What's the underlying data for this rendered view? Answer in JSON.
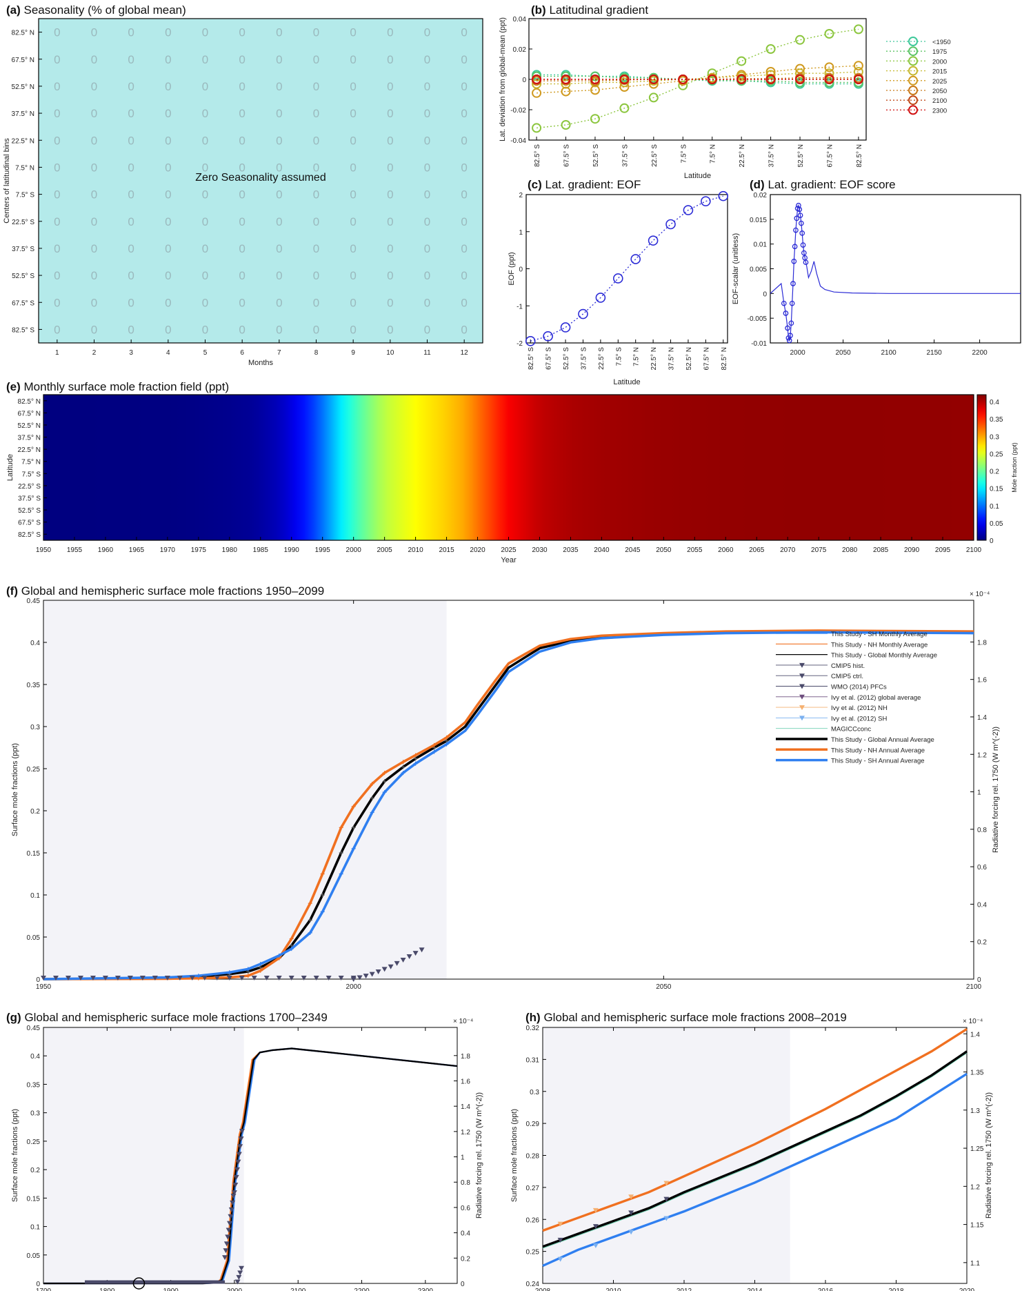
{
  "colors": {
    "nh": "#f07020",
    "sh": "#2f7ff0",
    "global": "#000000",
    "hist_shade": "#f3f3f8",
    "seasonality_bg": "#b4eaea",
    "eof": "#2b2bd6",
    "wmo": "#4a4a6a",
    "cmip5": "#4a4a6a",
    "magicc": "#6fcfb0"
  },
  "chart_data": [
    {
      "id": "a",
      "type": "heatmap",
      "title": "Seasonality (% of global mean)",
      "title_letter": "(a)",
      "ylabel": "Centers of latitudinal bins",
      "xlabel": "Months",
      "y_tick_labels": [
        "82.5° N",
        "67.5° N",
        "52.5° N",
        "37.5° N",
        "22.5° N",
        "7.5° N",
        "7.5° S",
        "22.5° S",
        "37.5° S",
        "52.5° S",
        "67.5° S",
        "82.5° S"
      ],
      "x_tick_labels": [
        "1",
        "2",
        "3",
        "4",
        "5",
        "6",
        "7",
        "8",
        "9",
        "10",
        "11",
        "12"
      ],
      "cell_value": "0",
      "annotation": "Zero Seasonality assumed"
    },
    {
      "id": "b",
      "type": "line",
      "title": "Latitudinal gradient",
      "title_letter": "(b)",
      "ylabel": "Lat. deviation from global-mean (ppt)",
      "xlabel": "Latitude",
      "x_tick_labels": [
        "82.5° S",
        "67.5° S",
        "52.5° S",
        "37.5° S",
        "22.5° S",
        "7.5° S",
        "7.5° N",
        "22.5° N",
        "37.5° N",
        "52.5° N",
        "67.5° N",
        "82.5° N"
      ],
      "x": [
        -82.5,
        -67.5,
        -52.5,
        -37.5,
        -22.5,
        -7.5,
        7.5,
        22.5,
        37.5,
        52.5,
        67.5,
        82.5
      ],
      "ylim": [
        -0.04,
        0.04
      ],
      "y_ticks": [
        -0.04,
        -0.02,
        0,
        0.02,
        0.04
      ],
      "y_tick_labels": [
        "-0.04",
        "-0.02",
        "0",
        "0.02",
        "0.04"
      ],
      "series": [
        {
          "name": "<1950",
          "color": "#3ec89a",
          "values": [
            0.003,
            0.003,
            0.002,
            0.002,
            0.001,
            0.0,
            -0.001,
            -0.001,
            -0.002,
            -0.003,
            -0.003,
            -0.003
          ]
        },
        {
          "name": "1975",
          "color": "#5cc466",
          "values": [
            0.002,
            0.002,
            0.002,
            0.001,
            0.001,
            0.0,
            -0.0005,
            -0.001,
            -0.001,
            -0.002,
            -0.002,
            -0.002
          ]
        },
        {
          "name": "2000",
          "color": "#8cc63f",
          "values": [
            -0.032,
            -0.03,
            -0.026,
            -0.019,
            -0.012,
            -0.004,
            0.004,
            0.012,
            0.02,
            0.026,
            0.03,
            0.033
          ]
        },
        {
          "name": "2015",
          "color": "#c6b830",
          "values": [
            -0.003,
            -0.003,
            -0.002,
            -0.002,
            -0.001,
            0.0,
            0.001,
            0.002,
            0.003,
            0.004,
            0.004,
            0.005
          ]
        },
        {
          "name": "2025",
          "color": "#d09a20",
          "values": [
            -0.009,
            -0.008,
            -0.007,
            -0.005,
            -0.003,
            -0.001,
            0.001,
            0.003,
            0.005,
            0.007,
            0.008,
            0.009
          ]
        },
        {
          "name": "2050",
          "color": "#c87818",
          "values": [
            -0.001,
            -0.001,
            -0.001,
            -0.0005,
            0.0,
            0.0,
            0.0,
            0.0005,
            0.0005,
            0.001,
            0.001,
            0.001
          ]
        },
        {
          "name": "2100",
          "color": "#c04818",
          "values": [
            0.0,
            0.0,
            0.0,
            0.0,
            0.0,
            0.0,
            0.0,
            0.0,
            0.0,
            0.0,
            0.0,
            0.0
          ]
        },
        {
          "name": "2300",
          "color": "#d01010",
          "values": [
            0.0,
            0.0,
            0.0,
            0.0,
            0.0,
            0.0,
            0.0,
            0.0,
            0.0,
            0.0,
            0.0,
            0.0
          ]
        }
      ]
    },
    {
      "id": "c",
      "type": "scatter",
      "title": "Lat. gradient: EOF",
      "title_letter": "(c)",
      "ylabel": "EOF (ppt)",
      "xlabel": "Latitude",
      "x_tick_labels": [
        "82.5° S",
        "67.5° S",
        "52.5° S",
        "37.5° S",
        "22.5° S",
        "7.5° S",
        "7.5° N",
        "22.5° N",
        "37.5° N",
        "52.5° N",
        "67.5° N",
        "82.5° N"
      ],
      "x": [
        -82.5,
        -67.5,
        -52.5,
        -37.5,
        -22.5,
        -7.5,
        7.5,
        22.5,
        37.5,
        52.5,
        67.5,
        82.5
      ],
      "values": [
        -1.95,
        -1.82,
        -1.58,
        -1.22,
        -0.78,
        -0.26,
        0.26,
        0.76,
        1.2,
        1.58,
        1.82,
        1.96
      ],
      "ylim": [
        -2,
        2
      ],
      "y_ticks": [
        -2,
        -1,
        0,
        1,
        2
      ],
      "y_tick_labels": [
        "-2",
        "-1",
        "0",
        "1",
        "2"
      ]
    },
    {
      "id": "d",
      "type": "line",
      "title": "Lat. gradient: EOF score",
      "title_letter": "(d)",
      "ylabel": "EOF-scalar (unitless)",
      "xlabel": "",
      "xlim": [
        1970,
        2245
      ],
      "ylim": [
        -0.01,
        0.02
      ],
      "x_ticks": [
        2000,
        2050,
        2100,
        2150,
        2200
      ],
      "x_tick_labels": [
        "2000",
        "2050",
        "2100",
        "2150",
        "2200"
      ],
      "y_ticks": [
        -0.01,
        -0.005,
        0,
        0.005,
        0.01,
        0.015,
        0.02
      ],
      "y_tick_labels": [
        "-0.01",
        "-0.005",
        "0",
        "0.005",
        "0.01",
        "0.015",
        "0.02"
      ],
      "x": [
        1970,
        1982,
        1985,
        1987,
        1989,
        1990,
        1991,
        1992,
        1993,
        1994,
        1995,
        1996,
        1997,
        1998,
        1999,
        2000,
        2001,
        2002,
        2003,
        2004,
        2005,
        2006,
        2007,
        2008,
        2009,
        2010,
        2012,
        2015,
        2018,
        2021,
        2025,
        2030,
        2040,
        2060,
        2100,
        2150,
        2245
      ],
      "values": [
        0.0,
        0.002,
        -0.002,
        -0.004,
        -0.007,
        -0.009,
        -0.0095,
        -0.0085,
        -0.006,
        -0.002,
        0.002,
        0.0065,
        0.0095,
        0.0128,
        0.0152,
        0.0172,
        0.0178,
        0.017,
        0.0158,
        0.0142,
        0.0122,
        0.0098,
        0.0082,
        0.0072,
        0.0063,
        0.0055,
        0.0032,
        0.0045,
        0.0065,
        0.004,
        0.0015,
        0.0008,
        0.0003,
        0.0001,
        0.0,
        0.0,
        0.0
      ],
      "marker_x_max": 2009
    },
    {
      "id": "e",
      "type": "heatmap",
      "title": "Monthly surface mole fraction field (ppt)",
      "title_letter": "(e)",
      "ylabel": "Latitude",
      "xlabel": "Year",
      "colorbar_label": "Mole fraction (ppt)",
      "y_tick_labels": [
        "82.5° N",
        "67.5° N",
        "52.5° N",
        "37.5° N",
        "22.5° N",
        "7.5° N",
        "7.5° S",
        "22.5° S",
        "37.5° S",
        "52.5° S",
        "67.5° S",
        "82.5° S"
      ],
      "xlim": [
        1950,
        2100
      ],
      "x_ticks": [
        1950,
        1955,
        1960,
        1965,
        1970,
        1975,
        1980,
        1985,
        1990,
        1995,
        2000,
        2005,
        2010,
        2015,
        2020,
        2025,
        2030,
        2035,
        2040,
        2045,
        2050,
        2055,
        2060,
        2065,
        2070,
        2075,
        2080,
        2085,
        2090,
        2095,
        2100
      ],
      "x_tick_labels": [
        "1950",
        "1955",
        "1960",
        "1965",
        "1970",
        "1975",
        "1980",
        "1985",
        "1990",
        "1995",
        "2000",
        "2005",
        "2010",
        "2015",
        "2020",
        "2025",
        "2030",
        "2035",
        "2040",
        "2045",
        "2050",
        "2055",
        "2060",
        "2065",
        "2070",
        "2075",
        "2080",
        "2085",
        "2090",
        "2095",
        "2100"
      ],
      "clim": [
        0,
        0.42
      ],
      "colorbar_ticks": [
        0,
        0.05,
        0.1,
        0.15,
        0.2,
        0.25,
        0.3,
        0.35,
        0.4
      ],
      "colorbar_tick_labels": [
        "0",
        "0.05",
        "0.1",
        "0.15",
        "0.2",
        "0.25",
        "0.3",
        "0.35",
        "0.4"
      ]
    },
    {
      "id": "f",
      "type": "line",
      "title": "Global and hemispheric surface mole fractions 1950–2099",
      "title_letter": "(f)",
      "ylabel": "Surface mole fractions (ppt)",
      "ylabel_right": "Radiative forcing rel. 1750 (W m^(-2))",
      "right_exponent": "× 10⁻⁴",
      "xlim": [
        1950,
        2100
      ],
      "ylim": [
        0,
        0.45
      ],
      "x_ticks": [
        1950,
        2000,
        2050,
        2100
      ],
      "x_tick_labels": [
        "1950",
        "2000",
        "2050",
        "2100"
      ],
      "y_ticks": [
        0,
        0.05,
        0.1,
        0.15,
        0.2,
        0.25,
        0.3,
        0.35,
        0.4,
        0.45
      ],
      "y_tick_labels": [
        "0",
        "0.05",
        "0.1",
        "0.15",
        "0.2",
        "0.25",
        "0.3",
        "0.35",
        "0.4",
        "0.45"
      ],
      "y_ticks_right": [
        0,
        0.2,
        0.4,
        0.6,
        0.8,
        1,
        1.2,
        1.4,
        1.6,
        1.8
      ],
      "y_tick_labels_right": [
        "0",
        "0.2",
        "0.4",
        "0.6",
        "0.8",
        "1",
        "1.2",
        "1.4",
        "1.6",
        "1.8"
      ],
      "hist_end": 2015,
      "legend": [
        "This Study - SH Monthly Average",
        "This Study - NH Monthly Average",
        "This Study - Global Monthly Average",
        "CMIP5 hist.",
        "CMIP5 ctrl.",
        "WMO (2014) PFCs",
        "Ivy  et al. (2012) global average",
        "Ivy  et al. (2012) NH",
        "Ivy  et al. (2012) SH",
        "MAGICCconc",
        "This Study - Global Annual Average",
        "This Study - NH Annual Average",
        "This Study - SH Annual Average"
      ],
      "x": [
        1950,
        1970,
        1975,
        1980,
        1983,
        1985,
        1988,
        1990,
        1993,
        1995,
        1998,
        2000,
        2003,
        2005,
        2008,
        2010,
        2013,
        2015,
        2018,
        2020,
        2023,
        2025,
        2030,
        2035,
        2040,
        2050,
        2060,
        2075,
        2100
      ],
      "series": [
        {
          "name": "This Study - Global Annual Average",
          "values": [
            0,
            0.001,
            0.003,
            0.006,
            0.009,
            0.014,
            0.025,
            0.04,
            0.07,
            0.1,
            0.15,
            0.18,
            0.215,
            0.235,
            0.252,
            0.262,
            0.275,
            0.283,
            0.3,
            0.32,
            0.35,
            0.37,
            0.393,
            0.402,
            0.406,
            0.41,
            0.412,
            0.413,
            0.412
          ]
        },
        {
          "name": "This Study - NH Annual Average",
          "values": [
            0,
            0.0005,
            0.001,
            0.002,
            0.004,
            0.01,
            0.025,
            0.048,
            0.09,
            0.125,
            0.18,
            0.205,
            0.232,
            0.245,
            0.258,
            0.266,
            0.278,
            0.287,
            0.305,
            0.326,
            0.356,
            0.375,
            0.396,
            0.404,
            0.408,
            0.411,
            0.413,
            0.414,
            0.413
          ]
        },
        {
          "name": "This Study - SH Annual Average",
          "values": [
            0,
            0.002,
            0.004,
            0.008,
            0.012,
            0.018,
            0.028,
            0.036,
            0.055,
            0.08,
            0.125,
            0.155,
            0.198,
            0.222,
            0.245,
            0.256,
            0.27,
            0.279,
            0.295,
            0.314,
            0.344,
            0.365,
            0.389,
            0.4,
            0.405,
            0.409,
            0.411,
            0.412,
            0.411
          ]
        }
      ],
      "wmo_x": [
        2000,
        2001,
        2002,
        2003,
        2004,
        2005,
        2006,
        2007,
        2008,
        2009,
        2010,
        2011
      ],
      "wmo_values": [
        0.0,
        0.002,
        0.004,
        0.006,
        0.009,
        0.012,
        0.015,
        0.019,
        0.023,
        0.027,
        0.031,
        0.035
      ]
    },
    {
      "id": "g",
      "type": "line",
      "title": "Global and hemispheric surface mole fractions 1700–2349",
      "title_letter": "(g)",
      "ylabel": "Surface mole fractions (ppt)",
      "ylabel_right": "Radiative forcing rel. 1750 (W m^(-2))",
      "right_exponent": "× 10⁻⁴",
      "xlim": [
        1700,
        2350
      ],
      "ylim": [
        0,
        0.45
      ],
      "x_ticks": [
        1700,
        1800,
        1900,
        2000,
        2100,
        2200,
        2300
      ],
      "x_tick_labels": [
        "1700",
        "1800",
        "1900",
        "2000",
        "2100",
        "2200",
        "2300"
      ],
      "y_ticks": [
        0,
        0.05,
        0.1,
        0.15,
        0.2,
        0.25,
        0.3,
        0.35,
        0.4,
        0.45
      ],
      "y_tick_labels": [
        "0",
        "0.05",
        "0.1",
        "0.15",
        "0.2",
        "0.25",
        "0.3",
        "0.35",
        "0.4",
        "0.45"
      ],
      "y_ticks_right": [
        0,
        0.2,
        0.4,
        0.6,
        0.8,
        1,
        1.2,
        1.4,
        1.6,
        1.8
      ],
      "y_tick_labels_right": [
        "0",
        "0.2",
        "0.4",
        "0.6",
        "0.8",
        "1",
        "1.2",
        "1.4",
        "1.6",
        "1.8"
      ],
      "hist_end": 2015,
      "x": [
        1700,
        1950,
        1970,
        1980,
        1990,
        2000,
        2010,
        2015,
        2020,
        2030,
        2040,
        2060,
        2090,
        2150,
        2200,
        2250,
        2300,
        2350
      ],
      "values": [
        0,
        0,
        0.001,
        0.006,
        0.04,
        0.18,
        0.262,
        0.283,
        0.32,
        0.393,
        0.406,
        0.41,
        0.413,
        0.406,
        0.4,
        0.394,
        0.388,
        0.382
      ]
    },
    {
      "id": "h",
      "type": "line",
      "title": "Global and hemispheric surface mole fractions 2008–2019",
      "title_letter": "(h)",
      "ylabel": "Surface mole fractions (ppt)",
      "ylabel_right": "Radiative forcing rel. 1750 (W m^(-2))",
      "right_exponent": "× 10⁻⁴",
      "xlim": [
        2008,
        2020
      ],
      "ylim": [
        0.24,
        0.32
      ],
      "x_ticks": [
        2008,
        2010,
        2012,
        2014,
        2016,
        2018,
        2020
      ],
      "x_tick_labels": [
        "2008",
        "2010",
        "2012",
        "2014",
        "2016",
        "2018",
        "2020"
      ],
      "y_ticks": [
        0.24,
        0.25,
        0.26,
        0.27,
        0.28,
        0.29,
        0.3,
        0.31,
        0.32
      ],
      "y_tick_labels": [
        "0.24",
        "0.25",
        "0.26",
        "0.27",
        "0.28",
        "0.29",
        "0.3",
        "0.31",
        "0.32"
      ],
      "y_ticks_right": [
        1.1,
        1.15,
        1.2,
        1.25,
        1.3,
        1.35,
        1.4
      ],
      "y_tick_labels_right": [
        "1.1",
        "1.15",
        "1.2",
        "1.25",
        "1.3",
        "1.35",
        "1.4"
      ],
      "hist_end": 2015,
      "x": [
        2008,
        2009,
        2010,
        2011,
        2012,
        2013,
        2014,
        2015,
        2016,
        2017,
        2018,
        2019,
        2020
      ],
      "series": [
        {
          "name": "This Study - NH Annual Average",
          "values": [
            0.2565,
            0.2605,
            0.2645,
            0.2685,
            0.2735,
            0.2785,
            0.2835,
            0.289,
            0.2945,
            0.3005,
            0.3065,
            0.3125,
            0.3195
          ]
        },
        {
          "name": "This Study - Global Annual Average",
          "values": [
            0.2515,
            0.2555,
            0.2595,
            0.2635,
            0.2685,
            0.273,
            0.2775,
            0.2825,
            0.2875,
            0.2925,
            0.2985,
            0.305,
            0.3125
          ]
        },
        {
          "name": "This Study - SH Annual Average",
          "values": [
            0.2455,
            0.2505,
            0.2545,
            0.2585,
            0.2625,
            0.267,
            0.2715,
            0.2765,
            0.2815,
            0.2865,
            0.2915,
            0.2985,
            0.3055
          ]
        }
      ],
      "marker_x": [
        2008.5,
        2009.5,
        2010.5,
        2011.5
      ]
    }
  ]
}
